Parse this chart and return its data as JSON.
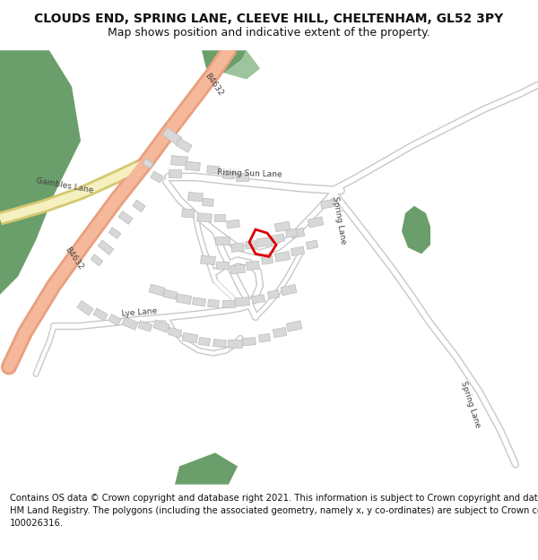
{
  "title": "CLOUDS END, SPRING LANE, CLEEVE HILL, CHELTENHAM, GL52 3PY",
  "subtitle": "Map shows position and indicative extent of the property.",
  "footer_lines": [
    "Contains OS data © Crown copyright and database right 2021. This information is subject to Crown copyright and database rights 2023 and is reproduced with the permission of",
    "HM Land Registry. The polygons (including the associated geometry, namely x, y co-ordinates) are subject to Crown copyright and database rights 2023 Ordnance Survey",
    "100026316."
  ],
  "bg_color": "#ffffff",
  "road_major_fill": "#f5b89a",
  "road_major_outline": "#e8a080",
  "road_minor_fill": "#ffffff",
  "road_minor_outline": "#c8c8c8",
  "yellow_fill": "#f5f0c0",
  "yellow_outline": "#d4c870",
  "green_dark": "#6a9e6a",
  "green_light": "#9ec49e",
  "building_fill": "#d8d8d8",
  "building_edge": "#bbbbbb",
  "highlight": "#dd0000",
  "label_color": "#444444",
  "title_fs": 10,
  "subtitle_fs": 9,
  "footer_fs": 7.2
}
